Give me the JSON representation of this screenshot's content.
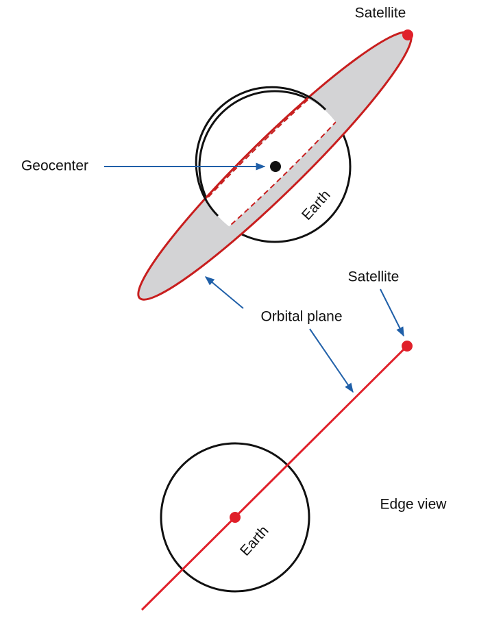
{
  "top_view": {
    "satellite_label": "Satellite",
    "geocenter_label": "Geocenter",
    "earth_label": "Earth"
  },
  "orbital_plane_label": "Orbital plane",
  "edge_view": {
    "satellite_label": "Satellite",
    "earth_label": "Earth",
    "title": "Edge view"
  }
}
